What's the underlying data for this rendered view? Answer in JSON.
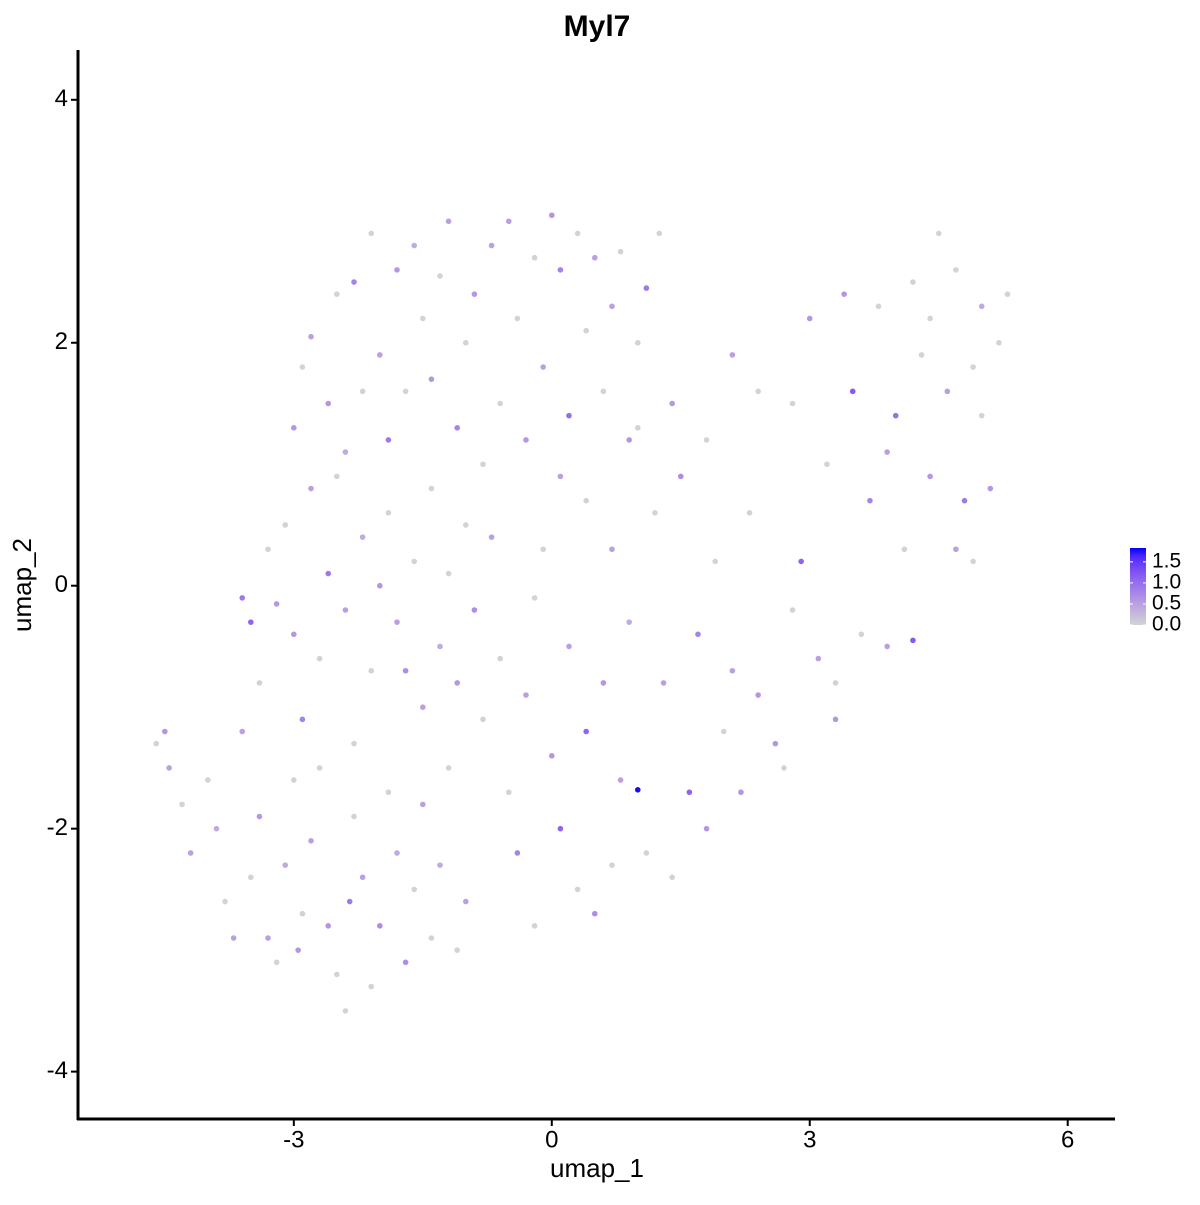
{
  "chart_data": {
    "type": "scatter",
    "title": "Myl7",
    "xlabel": "umap_1",
    "ylabel": "umap_2",
    "xlim": [
      -5.51,
      6.55
    ],
    "ylim": [
      -4.39,
      4.41
    ],
    "xticks": [
      -3,
      0,
      3,
      6
    ],
    "yticks": [
      -4,
      -2,
      0,
      2,
      4
    ],
    "color_low": "#d3d3d3",
    "color_high": "#0000ff",
    "clim": [
      0,
      1.83
    ],
    "cticks": [
      {
        "value": 0,
        "label": "0.0"
      },
      {
        "value": 0.5,
        "label": "0.5"
      },
      {
        "value": 1,
        "label": "1.0"
      },
      {
        "value": 1.5,
        "label": "1.5"
      }
    ],
    "x": [
      -4.6,
      -4.5,
      -4.45,
      -4.3,
      -4.2,
      -4.0,
      -3.9,
      -3.8,
      -3.7,
      -3.6,
      -3.5,
      -3.4,
      -3.3,
      -3.2,
      -3.1,
      -3.0,
      -2.95,
      -2.9,
      -2.8,
      -2.7,
      -2.6,
      -2.5,
      -2.4,
      -2.35,
      -2.3,
      -2.2,
      -2.1,
      -2.0,
      -1.9,
      -1.8,
      -1.7,
      -1.6,
      -1.5,
      -1.4,
      -1.3,
      -1.2,
      -1.1,
      -1.0,
      -3.6,
      -3.5,
      -3.4,
      -3.3,
      -3.2,
      -3.1,
      -3.0,
      -2.9,
      -2.8,
      -2.7,
      -2.6,
      -2.5,
      -2.4,
      -2.3,
      -2.2,
      -2.1,
      -2.0,
      -1.9,
      -1.8,
      -1.7,
      -1.6,
      -1.5,
      -1.4,
      -1.3,
      -1.2,
      -1.1,
      -1.0,
      -0.9,
      -0.8,
      -0.7,
      -0.6,
      -3.0,
      -2.9,
      -2.8,
      -2.6,
      -2.5,
      -2.4,
      -2.3,
      -2.2,
      -2.1,
      -2.0,
      -1.9,
      -1.8,
      -1.7,
      -1.6,
      -1.5,
      -1.4,
      -1.3,
      -1.2,
      -1.1,
      -1.0,
      -0.9,
      -0.8,
      -0.7,
      -0.6,
      -0.5,
      -0.4,
      -0.3,
      -0.2,
      -0.1,
      0.0,
      0.1,
      0.2,
      0.3,
      0.4,
      0.5,
      0.6,
      0.7,
      0.8,
      0.9,
      1.0,
      1.1,
      1.25,
      -0.5,
      -0.4,
      -0.3,
      -0.2,
      -0.1,
      0.0,
      0.1,
      0.2,
      0.3,
      0.4,
      0.5,
      0.6,
      0.7,
      0.8,
      0.9,
      1.0,
      1.1,
      1.2,
      1.3,
      1.4,
      1.5,
      1.6,
      1.7,
      1.8,
      1.9,
      2.0,
      2.1,
      2.2,
      2.3,
      2.4,
      0.4,
      0.1,
      -0.2,
      0.7,
      1.0,
      1.4,
      1.8,
      2.1,
      2.4,
      2.6,
      2.7,
      2.8,
      2.9,
      3.0,
      3.1,
      3.2,
      3.3,
      3.4,
      3.5,
      3.6,
      3.7,
      3.8,
      3.9,
      4.0,
      4.1,
      4.2,
      4.3,
      4.4,
      4.5,
      4.6,
      4.7,
      4.8,
      4.9,
      5.0,
      5.1,
      5.2,
      5.3,
      4.4,
      4.7,
      4.9,
      3.3,
      2.8,
      4.2,
      5.0,
      3.9
    ],
    "y": [
      -1.3,
      -1.2,
      -1.5,
      -1.8,
      -2.2,
      -1.6,
      -2.0,
      -2.6,
      -2.9,
      -1.2,
      -2.4,
      -1.9,
      -2.9,
      -3.1,
      -2.3,
      -1.6,
      -3.0,
      -2.7,
      -2.1,
      -1.5,
      -2.8,
      -3.2,
      -3.5,
      -2.6,
      -1.9,
      -2.4,
      -3.3,
      -2.8,
      -1.7,
      -2.2,
      -3.1,
      -2.5,
      -1.8,
      -2.9,
      -2.3,
      -1.5,
      -3.0,
      -2.6,
      -0.1,
      -0.3,
      -0.8,
      0.3,
      -0.15,
      0.5,
      -0.4,
      -1.1,
      0.8,
      -0.6,
      0.1,
      0.9,
      -0.2,
      -1.3,
      0.4,
      -0.7,
      0.0,
      0.6,
      -0.3,
      -0.7,
      0.2,
      -1.0,
      0.8,
      -0.5,
      0.1,
      -0.8,
      0.5,
      -0.2,
      -1.1,
      0.4,
      -0.6,
      1.3,
      1.8,
      2.05,
      1.5,
      2.4,
      1.1,
      2.5,
      1.6,
      2.9,
      1.9,
      1.2,
      2.6,
      1.6,
      2.8,
      2.2,
      1.7,
      2.55,
      3.0,
      1.3,
      2.0,
      2.4,
      1.0,
      2.8,
      1.5,
      3.0,
      2.2,
      1.2,
      2.7,
      1.8,
      3.05,
      2.6,
      1.4,
      2.9,
      2.1,
      2.7,
      1.6,
      2.3,
      2.75,
      1.2,
      2.0,
      2.45,
      2.9,
      -1.7,
      -2.2,
      -0.9,
      -2.8,
      0.3,
      -1.4,
      -2.0,
      -0.5,
      -2.5,
      -1.2,
      -2.7,
      -0.8,
      -2.3,
      -1.6,
      -0.3,
      -1.68,
      -2.2,
      0.6,
      -0.8,
      -2.4,
      0.9,
      -1.7,
      -0.4,
      -2.0,
      0.2,
      -1.2,
      -0.7,
      -1.7,
      0.6,
      -0.9,
      0.7,
      0.9,
      -0.1,
      0.3,
      1.3,
      1.5,
      1.2,
      1.9,
      1.6,
      -1.3,
      -1.5,
      1.5,
      0.2,
      2.2,
      -0.6,
      1.0,
      -1.1,
      2.4,
      1.6,
      -0.4,
      0.7,
      2.3,
      -0.5,
      1.4,
      0.3,
      -0.45,
      1.9,
      0.9,
      2.9,
      1.6,
      2.6,
      0.7,
      1.8,
      2.3,
      0.8,
      2.0,
      2.4,
      2.2,
      0.3,
      0.2,
      -0.8,
      -0.2,
      2.5,
      1.4,
      1.1
    ],
    "values": [
      0,
      0.6,
      0.5,
      0,
      0.5,
      0,
      0.4,
      0,
      0.5,
      0.5,
      0,
      0.6,
      0.5,
      0,
      0.4,
      0,
      0.6,
      0,
      0.5,
      0,
      0.6,
      0,
      0,
      0.9,
      0,
      0.5,
      0,
      0.7,
      0,
      0.4,
      0.7,
      0,
      0.5,
      0,
      0.4,
      0,
      0,
      0.5,
      0.9,
      1.1,
      0,
      0,
      0.6,
      0,
      0.6,
      0.8,
      0.5,
      0,
      0.9,
      0,
      0.5,
      0,
      0.4,
      0,
      0.6,
      0,
      0.5,
      0.7,
      0,
      0.5,
      0,
      0.4,
      0,
      0.6,
      0,
      0.7,
      0,
      0.5,
      0,
      0.6,
      0,
      0.5,
      0.6,
      0,
      0.4,
      0.8,
      0,
      0,
      0.5,
      0.9,
      0.6,
      0,
      0.4,
      0,
      0.6,
      0,
      0.5,
      0.8,
      0,
      0.6,
      0,
      0.5,
      0,
      0.5,
      0,
      0.6,
      0,
      0.5,
      0.6,
      0.8,
      1.0,
      0,
      0,
      0.5,
      0,
      0.5,
      0,
      0.6,
      0,
      0.9,
      0,
      0,
      0.8,
      0.5,
      0,
      0,
      0.6,
      1.1,
      0.5,
      0,
      1.1,
      0.7,
      0.6,
      0,
      0.5,
      0.4,
      1.8,
      0,
      0,
      0.5,
      0,
      0.7,
      1.1,
      0.8,
      0.6,
      0,
      0,
      0.5,
      0.6,
      0,
      0.6,
      0,
      0.5,
      0,
      0.5,
      0,
      0.6,
      0,
      0.5,
      0,
      0.6,
      0,
      0,
      1.1,
      0.6,
      0.5,
      0,
      0.6,
      0.6,
      1.2,
      0,
      0.8,
      0,
      0.5,
      1.0,
      0,
      1.2,
      0,
      0.6,
      0,
      0.5,
      0,
      0.9,
      0,
      0.4,
      0.6,
      0,
      0,
      0,
      0.5,
      0,
      0,
      0,
      0,
      0,
      0.5
    ]
  }
}
